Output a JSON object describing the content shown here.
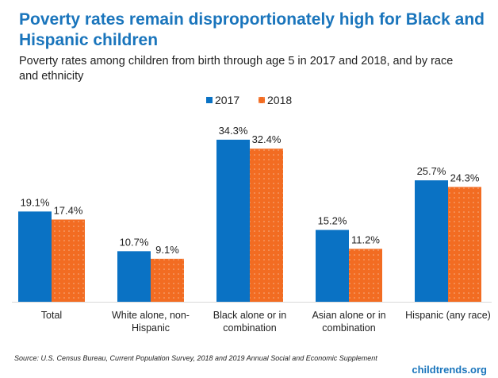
{
  "title": "Poverty rates remain disproportionately high for Black and Hispanic children",
  "subtitle": "Poverty rates among children from birth through age 5 in 2017 and 2018, and by race and ethnicity",
  "source": "Source: U.S. Census Bureau, Current Population Survey, 2018 and 2019 Annual Social and Economic Supplement",
  "brand": "childtrends.org",
  "colors": {
    "2017": "#0a72c4",
    "2018": "#f26c22"
  },
  "chart_data": {
    "type": "bar",
    "title": "Poverty rates remain disproportionately high for Black and Hispanic children",
    "subtitle": "Poverty rates among children from birth through age 5 in 2017 and 2018, and by race and ethnicity",
    "categories": [
      "Total",
      "White alone, non-Hispanic",
      "Black alone or in combination",
      "Asian alone or in combination",
      "Hispanic (any race)"
    ],
    "category_lines": [
      [
        "Total"
      ],
      [
        "White alone, non-",
        "Hispanic"
      ],
      [
        "Black alone or in",
        "combination"
      ],
      [
        "Asian alone or in",
        "combination"
      ],
      [
        "Hispanic (any race)"
      ]
    ],
    "series": [
      {
        "name": "2017",
        "values": [
          19.1,
          10.7,
          34.3,
          15.2,
          25.7
        ],
        "labels": [
          "19.1%",
          "10.7%",
          "34.3%",
          "15.2%",
          "25.7%"
        ]
      },
      {
        "name": "2018",
        "values": [
          17.4,
          9.1,
          32.4,
          11.2,
          24.3
        ],
        "labels": [
          "17.4%",
          "9.1%",
          "32.4%",
          "11.2%",
          "24.3%"
        ]
      }
    ],
    "ylim": [
      0,
      40
    ],
    "grid": false,
    "legend": "top-center",
    "xlabel": "",
    "ylabel": ""
  }
}
